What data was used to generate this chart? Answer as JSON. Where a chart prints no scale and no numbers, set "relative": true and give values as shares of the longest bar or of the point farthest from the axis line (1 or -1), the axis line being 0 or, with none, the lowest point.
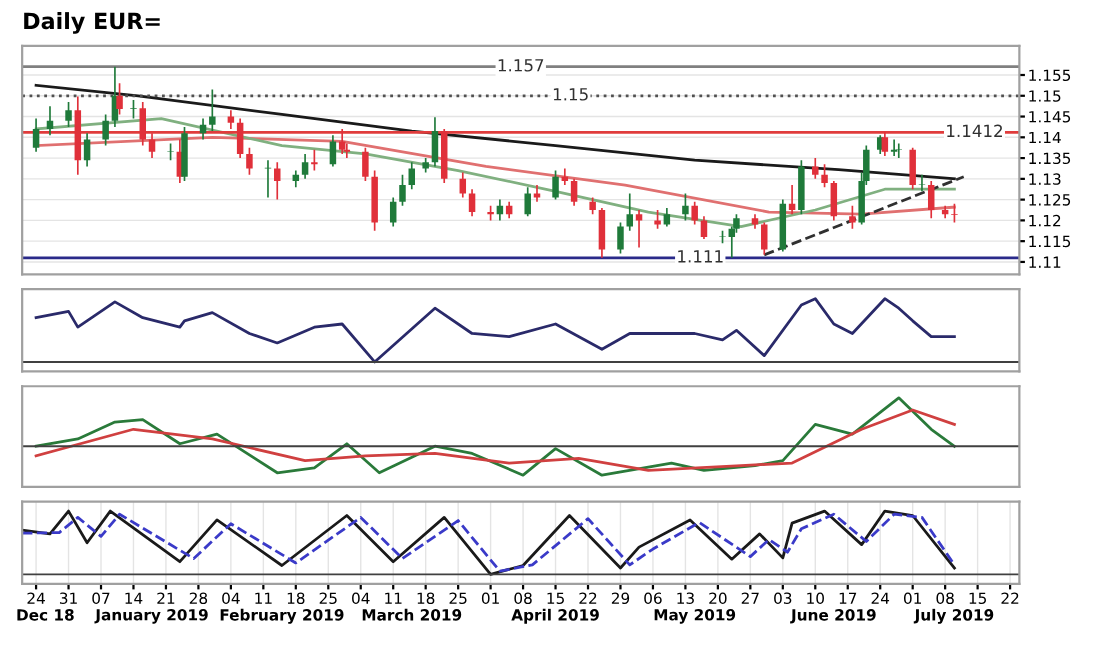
{
  "chart_data": [
    {
      "type": "candlestick",
      "title": "Daily EUR=",
      "x": [
        "2018-12-24",
        "2018-12-27",
        "2018-12-31",
        "2019-01-02",
        "2019-01-04",
        "2019-01-08",
        "2019-01-10",
        "2019-01-11",
        "2019-01-14",
        "2019-01-16",
        "2019-01-18",
        "2019-01-22",
        "2019-01-24",
        "2019-01-25",
        "2019-01-29",
        "2019-01-31",
        "2019-02-04",
        "2019-02-06",
        "2019-02-08",
        "2019-02-12",
        "2019-02-14",
        "2019-02-18",
        "2019-02-20",
        "2019-02-22",
        "2019-02-26",
        "2019-02-28",
        "2019-03-01",
        "2019-03-05",
        "2019-03-07",
        "2019-03-11",
        "2019-03-13",
        "2019-03-15",
        "2019-03-18",
        "2019-03-20",
        "2019-03-22",
        "2019-03-26",
        "2019-03-28",
        "2019-04-01",
        "2019-04-03",
        "2019-04-05",
        "2019-04-09",
        "2019-04-11",
        "2019-04-15",
        "2019-04-17",
        "2019-04-19",
        "2019-04-23",
        "2019-04-25",
        "2019-04-29",
        "2019-05-01",
        "2019-05-03",
        "2019-05-07",
        "2019-05-09",
        "2019-05-13",
        "2019-05-15",
        "2019-05-17",
        "2019-05-21",
        "2019-05-23",
        "2019-05-24",
        "2019-05-28",
        "2019-05-30",
        "2019-06-03",
        "2019-06-05",
        "2019-06-07",
        "2019-06-10",
        "2019-06-12",
        "2019-06-14",
        "2019-06-18",
        "2019-06-20",
        "2019-06-21",
        "2019-06-24",
        "2019-06-25",
        "2019-06-27",
        "2019-06-28",
        "2019-07-01",
        "2019-07-03",
        "2019-07-05",
        "2019-07-08",
        "2019-07-10"
      ],
      "ohlc": [
        [
          1.1375,
          1.1445,
          1.1365,
          1.142
        ],
        [
          1.142,
          1.1475,
          1.1405,
          1.144
        ],
        [
          1.144,
          1.1485,
          1.1425,
          1.1465
        ],
        [
          1.1465,
          1.1498,
          1.131,
          1.1345
        ],
        [
          1.1345,
          1.141,
          1.133,
          1.1395
        ],
        [
          1.1395,
          1.1455,
          1.138,
          1.144
        ],
        [
          1.144,
          1.157,
          1.1425,
          1.15
        ],
        [
          1.15,
          1.153,
          1.1455,
          1.1468
        ],
        [
          1.1468,
          1.149,
          1.1445,
          1.147
        ],
        [
          1.147,
          1.1485,
          1.138,
          1.1395
        ],
        [
          1.1395,
          1.141,
          1.135,
          1.1365
        ],
        [
          1.1365,
          1.1385,
          1.1345,
          1.1365
        ],
        [
          1.1365,
          1.1395,
          1.129,
          1.1305
        ],
        [
          1.1305,
          1.1425,
          1.1295,
          1.141
        ],
        [
          1.141,
          1.1445,
          1.1395,
          1.143
        ],
        [
          1.143,
          1.1515,
          1.1415,
          1.145
        ],
        [
          1.145,
          1.1465,
          1.142,
          1.1435
        ],
        [
          1.1435,
          1.1445,
          1.135,
          1.136
        ],
        [
          1.136,
          1.1375,
          1.131,
          1.1325
        ],
        [
          1.1325,
          1.1345,
          1.1255,
          1.1325
        ],
        [
          1.1325,
          1.134,
          1.125,
          1.1295
        ],
        [
          1.1295,
          1.132,
          1.128,
          1.131
        ],
        [
          1.131,
          1.136,
          1.13,
          1.134
        ],
        [
          1.134,
          1.137,
          1.132,
          1.1335
        ],
        [
          1.1335,
          1.1405,
          1.133,
          1.139
        ],
        [
          1.139,
          1.142,
          1.136,
          1.137
        ],
        [
          1.137,
          1.1385,
          1.135,
          1.1365
        ],
        [
          1.1365,
          1.1375,
          1.1295,
          1.1305
        ],
        [
          1.1305,
          1.132,
          1.1175,
          1.1195
        ],
        [
          1.1195,
          1.1255,
          1.1185,
          1.1245
        ],
        [
          1.1245,
          1.131,
          1.1235,
          1.1285
        ],
        [
          1.1285,
          1.134,
          1.1275,
          1.1325
        ],
        [
          1.1325,
          1.135,
          1.1315,
          1.134
        ],
        [
          1.134,
          1.1448,
          1.133,
          1.1415
        ],
        [
          1.1415,
          1.142,
          1.129,
          1.13
        ],
        [
          1.13,
          1.1315,
          1.1255,
          1.1265
        ],
        [
          1.1265,
          1.1275,
          1.121,
          1.122
        ],
        [
          1.122,
          1.1235,
          1.12,
          1.1215
        ],
        [
          1.1215,
          1.125,
          1.12,
          1.1235
        ],
        [
          1.1235,
          1.1245,
          1.1205,
          1.1215
        ],
        [
          1.1215,
          1.128,
          1.121,
          1.1265
        ],
        [
          1.1265,
          1.1285,
          1.1245,
          1.1255
        ],
        [
          1.1255,
          1.132,
          1.125,
          1.1305
        ],
        [
          1.1305,
          1.1325,
          1.1285,
          1.1295
        ],
        [
          1.1295,
          1.13,
          1.1235,
          1.1245
        ],
        [
          1.1245,
          1.1255,
          1.1215,
          1.1225
        ],
        [
          1.1225,
          1.123,
          1.111,
          1.113
        ],
        [
          1.113,
          1.1195,
          1.112,
          1.1185
        ],
        [
          1.1185,
          1.1265,
          1.1175,
          1.1215
        ],
        [
          1.1215,
          1.1225,
          1.1135,
          1.12
        ],
        [
          1.12,
          1.1225,
          1.118,
          1.119
        ],
        [
          1.119,
          1.123,
          1.1185,
          1.1215
        ],
        [
          1.1215,
          1.1265,
          1.12,
          1.1235
        ],
        [
          1.1235,
          1.1245,
          1.119,
          1.12
        ],
        [
          1.12,
          1.121,
          1.1155,
          1.116
        ],
        [
          1.116,
          1.1175,
          1.1145,
          1.116
        ],
        [
          1.116,
          1.1185,
          1.111,
          1.118
        ],
        [
          1.118,
          1.1215,
          1.117,
          1.1205
        ],
        [
          1.1205,
          1.1215,
          1.118,
          1.119
        ],
        [
          1.119,
          1.1195,
          1.1117,
          1.113
        ],
        [
          1.113,
          1.125,
          1.1125,
          1.124
        ],
        [
          1.124,
          1.1285,
          1.1215,
          1.1225
        ],
        [
          1.1225,
          1.1345,
          1.1215,
          1.133
        ],
        [
          1.133,
          1.135,
          1.13,
          1.131
        ],
        [
          1.131,
          1.1335,
          1.128,
          1.129
        ],
        [
          1.129,
          1.1295,
          1.12,
          1.121
        ],
        [
          1.121,
          1.1235,
          1.118,
          1.1195
        ],
        [
          1.1195,
          1.1315,
          1.119,
          1.1295
        ],
        [
          1.1295,
          1.138,
          1.1285,
          1.137
        ],
        [
          1.137,
          1.1405,
          1.136,
          1.14
        ],
        [
          1.14,
          1.1412,
          1.1355,
          1.1365
        ],
        [
          1.1365,
          1.1395,
          1.1355,
          1.137
        ],
        [
          1.137,
          1.1385,
          1.135,
          1.137
        ],
        [
          1.137,
          1.1375,
          1.1275,
          1.1285
        ],
        [
          1.1285,
          1.131,
          1.127,
          1.1285
        ],
        [
          1.1285,
          1.1295,
          1.1205,
          1.1225
        ],
        [
          1.1225,
          1.1235,
          1.1205,
          1.1215
        ],
        [
          1.1215,
          1.124,
          1.1195,
          1.1213
        ]
      ],
      "series": [
        {
          "type": "line",
          "color": "#1a1a1a",
          "x": [
            "2018-12-24",
            "2019-01-15",
            "2019-02-15",
            "2019-03-15",
            "2019-04-15",
            "2019-05-15",
            "2019-06-15",
            "2019-07-10"
          ],
          "values": [
            1.1525,
            1.15,
            1.1455,
            1.1415,
            1.138,
            1.1345,
            1.1322,
            1.13
          ]
        },
        {
          "type": "line",
          "color": "#e07070",
          "x": [
            "2018-12-24",
            "2019-01-31",
            "2019-02-28",
            "2019-03-31",
            "2019-04-30",
            "2019-05-31",
            "2019-06-20",
            "2019-07-10"
          ],
          "values": [
            1.138,
            1.14,
            1.139,
            1.133,
            1.1285,
            1.122,
            1.1215,
            1.1232
          ]
        },
        {
          "type": "line",
          "color": "#80b080",
          "x": [
            "2018-12-24",
            "2019-01-20",
            "2019-02-15",
            "2019-03-05",
            "2019-03-25",
            "2019-04-15",
            "2019-05-05",
            "2019-05-25",
            "2019-06-10",
            "2019-06-25",
            "2019-07-10"
          ],
          "values": [
            1.142,
            1.1445,
            1.138,
            1.136,
            1.132,
            1.127,
            1.122,
            1.1185,
            1.1225,
            1.1275,
            1.1275
          ]
        },
        {
          "type": "line",
          "color": "#303030",
          "line_style": "dashed",
          "x": [
            "2019-05-30",
            "2019-07-12"
          ],
          "values": [
            1.1117,
            1.1305
          ]
        }
      ],
      "ref_lines": [
        {
          "axis": "y",
          "value": 1.157,
          "label": "1.157",
          "color": "#808080"
        },
        {
          "axis": "y",
          "value": 1.15,
          "label": "1.15",
          "color": "#505050",
          "line_style": "dotted"
        },
        {
          "axis": "y",
          "value": 1.1412,
          "label": "1.1412",
          "color": "#e03c3c"
        },
        {
          "axis": "y",
          "value": 1.111,
          "label": "1.111",
          "color": "#2a2a8a"
        }
      ],
      "xlim": [
        "2018-12-21",
        "2019-07-24"
      ],
      "ylim": [
        1.107,
        1.162
      ],
      "yticks": [
        1.11,
        1.115,
        1.12,
        1.125,
        1.13,
        1.135,
        1.14,
        1.145,
        1.15,
        1.155
      ],
      "tick_labels": "y",
      "grid": true
    },
    {
      "type": "line",
      "relative": true,
      "series": [
        {
          "color": "#2a2a6a",
          "x": [
            "2018-12-24",
            "2018-12-31",
            "2019-01-02",
            "2019-01-10",
            "2019-01-16",
            "2019-01-24",
            "2019-01-25",
            "2019-01-31",
            "2019-02-08",
            "2019-02-14",
            "2019-02-22",
            "2019-02-28",
            "2019-03-07",
            "2019-03-20",
            "2019-03-28",
            "2019-04-05",
            "2019-04-15",
            "2019-04-25",
            "2019-05-01",
            "2019-05-15",
            "2019-05-21",
            "2019-05-24",
            "2019-05-30",
            "2019-06-07",
            "2019-06-10",
            "2019-06-14",
            "2019-06-18",
            "2019-06-25",
            "2019-06-28",
            "2019-07-01",
            "2019-07-05",
            "2019-07-10"
          ],
          "values": [
            0.7,
            0.8,
            0.55,
            0.95,
            0.7,
            0.55,
            0.65,
            0.78,
            0.45,
            0.3,
            0.55,
            0.6,
            0.0,
            0.85,
            0.45,
            0.4,
            0.6,
            0.2,
            0.45,
            0.45,
            0.35,
            0.5,
            0.1,
            0.9,
            1.0,
            0.6,
            0.45,
            1.0,
            0.85,
            0.65,
            0.4,
            0.4
          ]
        }
      ],
      "xlim": [
        "2018-12-21",
        "2019-07-24"
      ],
      "tick_labels": false,
      "grid": true
    },
    {
      "type": "line",
      "relative": true,
      "series": [
        {
          "color": "#2a7a3a",
          "x": [
            "2018-12-24",
            "2019-01-02",
            "2019-01-10",
            "2019-01-16",
            "2019-01-24",
            "2019-02-01",
            "2019-02-14",
            "2019-02-22",
            "2019-03-01",
            "2019-03-08",
            "2019-03-20",
            "2019-03-28",
            "2019-04-08",
            "2019-04-15",
            "2019-04-25",
            "2019-05-10",
            "2019-05-17",
            "2019-05-28",
            "2019-06-03",
            "2019-06-10",
            "2019-06-18",
            "2019-06-28",
            "2019-07-05",
            "2019-07-10"
          ],
          "values": [
            0.0,
            0.15,
            0.5,
            0.55,
            0.05,
            0.25,
            -0.55,
            -0.45,
            0.05,
            -0.55,
            0.0,
            -0.15,
            -0.6,
            -0.05,
            -0.6,
            -0.35,
            -0.5,
            -0.4,
            -0.3,
            0.45,
            0.25,
            1.0,
            0.35,
            0.0
          ]
        },
        {
          "color": "#d04040",
          "x": [
            "2018-12-24",
            "2019-01-14",
            "2019-01-31",
            "2019-02-20",
            "2019-03-05",
            "2019-03-20",
            "2019-04-05",
            "2019-04-20",
            "2019-05-05",
            "2019-05-25",
            "2019-06-05",
            "2019-06-20",
            "2019-07-01",
            "2019-07-10"
          ],
          "values": [
            -0.2,
            0.35,
            0.15,
            -0.3,
            -0.2,
            -0.15,
            -0.35,
            -0.25,
            -0.5,
            -0.4,
            -0.35,
            0.35,
            0.75,
            0.45
          ]
        }
      ],
      "xlim": [
        "2018-12-21",
        "2019-07-24"
      ],
      "tick_labels": false,
      "grid": true
    },
    {
      "type": "line",
      "relative": true,
      "series": [
        {
          "color": "#1a1a1a",
          "x": [
            "2018-12-21",
            "2018-12-27",
            "2018-12-31",
            "2019-01-04",
            "2019-01-09",
            "2019-01-24",
            "2019-02-01",
            "2019-02-15",
            "2019-03-01",
            "2019-03-11",
            "2019-03-22",
            "2019-04-01",
            "2019-04-08",
            "2019-04-18",
            "2019-04-29",
            "2019-05-03",
            "2019-05-14",
            "2019-05-23",
            "2019-05-29",
            "2019-06-03",
            "2019-06-05",
            "2019-06-12",
            "2019-06-20",
            "2019-06-25",
            "2019-07-01",
            "2019-07-10"
          ],
          "values": [
            0.7,
            0.64,
            1.0,
            0.5,
            1.0,
            0.2,
            0.86,
            0.14,
            0.93,
            0.2,
            0.9,
            0.0,
            0.14,
            0.93,
            0.1,
            0.43,
            0.86,
            0.24,
            0.64,
            0.26,
            0.81,
            1.0,
            0.47,
            1.0,
            0.93,
            0.1
          ]
        },
        {
          "color": "#3a3ac8",
          "line_style": "dashed",
          "x": [
            "2018-12-21",
            "2018-12-29",
            "2019-01-02",
            "2019-01-07",
            "2019-01-11",
            "2019-01-27",
            "2019-02-04",
            "2019-02-18",
            "2019-03-04",
            "2019-03-13",
            "2019-03-25",
            "2019-04-03",
            "2019-04-10",
            "2019-04-22",
            "2019-05-01",
            "2019-05-06",
            "2019-05-16",
            "2019-05-27",
            "2019-05-31",
            "2019-06-04",
            "2019-06-07",
            "2019-06-14",
            "2019-06-21",
            "2019-06-27",
            "2019-07-03",
            "2019-07-10"
          ],
          "values": [
            0.65,
            0.66,
            0.9,
            0.6,
            0.95,
            0.25,
            0.8,
            0.18,
            0.9,
            0.25,
            0.85,
            0.05,
            0.15,
            0.88,
            0.15,
            0.4,
            0.82,
            0.28,
            0.55,
            0.35,
            0.72,
            0.95,
            0.52,
            0.95,
            0.9,
            0.15
          ]
        }
      ],
      "xlim": [
        "2018-12-21",
        "2019-07-24"
      ],
      "xticks": [
        {
          "value": "2018-12-24",
          "label": "24"
        },
        {
          "value": "2018-12-31",
          "label": "31"
        },
        {
          "value": "2019-01-07",
          "label": "07"
        },
        {
          "value": "2019-01-14",
          "label": "14"
        },
        {
          "value": "2019-01-21",
          "label": "21"
        },
        {
          "value": "2019-01-28",
          "label": "28"
        },
        {
          "value": "2019-02-04",
          "label": "04"
        },
        {
          "value": "2019-02-11",
          "label": "11"
        },
        {
          "value": "2019-02-18",
          "label": "18"
        },
        {
          "value": "2019-02-25",
          "label": "25"
        },
        {
          "value": "2019-03-04",
          "label": "04"
        },
        {
          "value": "2019-03-11",
          "label": "11"
        },
        {
          "value": "2019-03-18",
          "label": "18"
        },
        {
          "value": "2019-03-25",
          "label": "25"
        },
        {
          "value": "2019-04-01",
          "label": "01"
        },
        {
          "value": "2019-04-08",
          "label": "08"
        },
        {
          "value": "2019-04-15",
          "label": "15"
        },
        {
          "value": "2019-04-22",
          "label": "22"
        },
        {
          "value": "2019-04-29",
          "label": "29"
        },
        {
          "value": "2019-05-06",
          "label": "06"
        },
        {
          "value": "2019-05-13",
          "label": "13"
        },
        {
          "value": "2019-05-20",
          "label": "20"
        },
        {
          "value": "2019-05-27",
          "label": "27"
        },
        {
          "value": "2019-06-03",
          "label": "03"
        },
        {
          "value": "2019-06-10",
          "label": "10"
        },
        {
          "value": "2019-06-17",
          "label": "17"
        },
        {
          "value": "2019-06-24",
          "label": "24"
        },
        {
          "value": "2019-07-01",
          "label": "01"
        },
        {
          "value": "2019-07-08",
          "label": "08"
        },
        {
          "value": "2019-07-15",
          "label": "15"
        },
        {
          "value": "2019-07-22",
          "label": "22"
        }
      ],
      "x2lim": [
        "2018-12-21",
        "2019-07-24"
      ],
      "x2ticks": [
        {
          "value": "2018-12-26",
          "label": "Dec 18"
        },
        {
          "value": "2019-01-18",
          "label": "January 2019"
        },
        {
          "value": "2019-02-15",
          "label": "February 2019"
        },
        {
          "value": "2019-03-15",
          "label": "March 2019"
        },
        {
          "value": "2019-04-15",
          "label": "April 2019"
        },
        {
          "value": "2019-05-15",
          "label": "May 2019"
        },
        {
          "value": "2019-06-14",
          "label": "June 2019"
        },
        {
          "value": "2019-07-10",
          "label": "July 2019"
        }
      ],
      "tick_labels": "x",
      "grid": true
    }
  ]
}
